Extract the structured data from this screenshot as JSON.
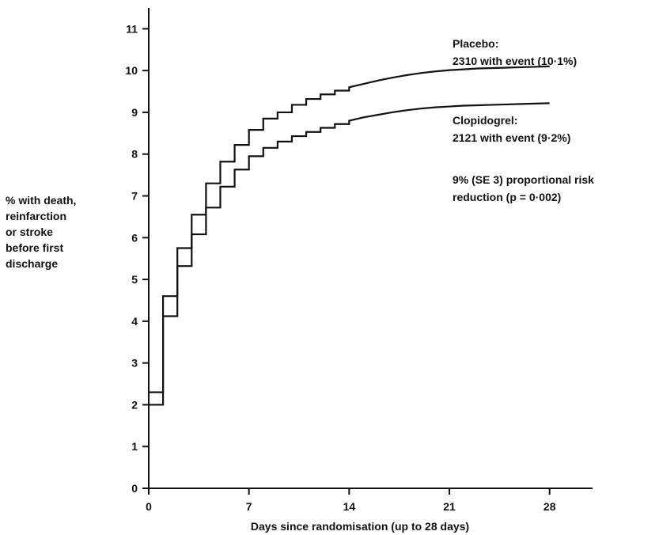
{
  "chart_data": {
    "type": "line",
    "step": true,
    "xlabel": "Days since randomisation (up to 28 days)",
    "ylabel_lines": [
      "% with death,",
      "reinfarction",
      "or stroke",
      "before first",
      "discharge"
    ],
    "xlim": [
      0,
      31
    ],
    "ylim": [
      0,
      11.5
    ],
    "xticks": [
      0,
      7,
      14,
      21,
      28
    ],
    "yticks": [
      0,
      1,
      2,
      3,
      4,
      5,
      6,
      7,
      8,
      9,
      10,
      11
    ],
    "grid": false,
    "series": [
      {
        "name": "Placebo",
        "x": [
          0,
          1,
          2,
          3,
          4,
          5,
          6,
          7,
          8,
          9,
          10,
          11,
          12,
          13,
          14,
          15,
          16,
          17,
          18,
          19,
          20,
          21,
          22,
          23,
          24,
          25,
          26,
          27,
          28
        ],
        "y": [
          2.3,
          4.6,
          5.75,
          6.55,
          7.3,
          7.82,
          8.22,
          8.58,
          8.85,
          9.0,
          9.18,
          9.32,
          9.43,
          9.52,
          9.6,
          9.68,
          9.76,
          9.83,
          9.89,
          9.94,
          9.98,
          10.01,
          10.03,
          10.05,
          10.06,
          10.07,
          10.08,
          10.09,
          10.1
        ]
      },
      {
        "name": "Clopidogrel",
        "x": [
          0,
          1,
          2,
          3,
          4,
          5,
          6,
          7,
          8,
          9,
          10,
          11,
          12,
          13,
          14,
          15,
          16,
          17,
          18,
          19,
          20,
          21,
          22,
          23,
          24,
          25,
          26,
          27,
          28
        ],
        "y": [
          2.0,
          4.12,
          5.32,
          6.08,
          6.72,
          7.22,
          7.63,
          7.95,
          8.15,
          8.3,
          8.43,
          8.53,
          8.63,
          8.72,
          8.8,
          8.88,
          8.94,
          9.0,
          9.05,
          9.09,
          9.12,
          9.14,
          9.16,
          9.17,
          9.18,
          9.19,
          9.2,
          9.21,
          9.22
        ]
      }
    ],
    "annotations": [
      {
        "lines": [
          "Placebo:",
          "2310 with event (10·1%)"
        ]
      },
      {
        "lines": [
          "Clopidogrel:",
          "2121 with event (9·2%)"
        ]
      },
      {
        "lines": [
          "9% (SE 3) proportional risk",
          "reduction (p = 0·002)"
        ]
      }
    ]
  }
}
